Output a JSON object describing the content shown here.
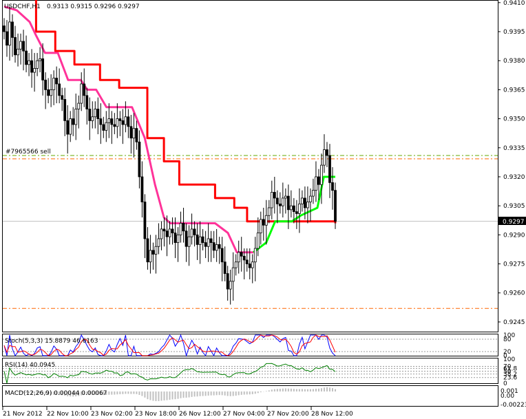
{
  "header": {
    "symbol": "USDCHF,H1",
    "ohlc": "0.9313 0.9315 0.9296 0.9297"
  },
  "order_label": "#7965566 sell",
  "price_badge": "0.9297",
  "colors": {
    "candle": "#000000",
    "red_line": "#ff0000",
    "pink_line": "#ff3399",
    "green_line": "#00ff00",
    "order_line": "#ff6600",
    "level_green": "#66aa00",
    "stoch_main": "#0000ff",
    "stoch_signal": "#ff0000",
    "rsi": "#008000",
    "macd": "#c0c0c0"
  },
  "panels": {
    "stoch": {
      "label": "Stoch(5,3,3) 15.8879 46.6163",
      "ticks": [
        "100",
        "80",
        "20",
        "0"
      ]
    },
    "rsi": {
      "label": "RSI(14) 40.0945",
      "ticks": [
        "100",
        "70",
        "61.8",
        "50",
        "38.2",
        "23.6",
        "0"
      ]
    },
    "macd": {
      "label": "MACD(12,26,9) 0.00044 0.00067",
      "ticks": [
        "0.001",
        "0.00",
        "-0.00223"
      ]
    }
  },
  "chart_data": {
    "type": "candlestick",
    "symbol": "USDCHF",
    "timeframe": "H1",
    "ylim": [
      0.924,
      0.9411
    ],
    "y_ticks": [
      "0.9410",
      "0.9395",
      "0.9380",
      "0.9365",
      "0.9350",
      "0.9335",
      "0.9320",
      "0.9305",
      "0.9290",
      "0.9275",
      "0.9260",
      "0.9245"
    ],
    "x_ticks": [
      "21 Nov 2012",
      "22 Nov 10:00",
      "23 Nov 02:00",
      "23 Nov 18:00",
      "26 Nov 12:00",
      "27 Nov 04:00",
      "27 Nov 20:00",
      "28 Nov 12:00"
    ],
    "last_price": 0.9297,
    "levels": {
      "sell_order": 0.9331,
      "order_line_2": 0.933,
      "lower_line": 0.9252,
      "current_price": 0.9297
    },
    "closes": [
      0.9395,
      0.9388,
      0.94,
      0.9392,
      0.9383,
      0.9386,
      0.939,
      0.9385,
      0.9378,
      0.938,
      0.9374,
      0.9376,
      0.938,
      0.9381,
      0.937,
      0.9365,
      0.9362,
      0.9365,
      0.9371,
      0.9368,
      0.9362,
      0.936,
      0.9349,
      0.9342,
      0.935,
      0.9347,
      0.9355,
      0.9358,
      0.9368,
      0.9362,
      0.9355,
      0.9349,
      0.9351,
      0.9355,
      0.935,
      0.9347,
      0.9344,
      0.9348,
      0.935,
      0.9347,
      0.9346,
      0.935,
      0.9349,
      0.9347,
      0.9351,
      0.9346,
      0.934,
      0.9345,
      0.9338,
      0.932,
      0.9307,
      0.9288,
      0.9276,
      0.9282,
      0.928,
      0.9284,
      0.9288,
      0.9293,
      0.9292,
      0.9289,
      0.9293,
      0.9291,
      0.9286,
      0.929,
      0.9296,
      0.9292,
      0.9284,
      0.9289,
      0.9293,
      0.929,
      0.9285,
      0.9289,
      0.9286,
      0.9284,
      0.9288,
      0.9286,
      0.9282,
      0.9285,
      0.9283,
      0.9276,
      0.927,
      0.9262,
      0.9266,
      0.9273,
      0.9276,
      0.9281,
      0.9279,
      0.9277,
      0.9275,
      0.9273,
      0.9276,
      0.9283,
      0.9291,
      0.9298,
      0.9295,
      0.93,
      0.9304,
      0.9312,
      0.9309,
      0.9306,
      0.9305,
      0.9309,
      0.931,
      0.9303,
      0.9305,
      0.9302,
      0.9301,
      0.9306,
      0.9309,
      0.9304,
      0.9307,
      0.931,
      0.9313,
      0.932,
      0.9316,
      0.9326,
      0.9334,
      0.9331,
      0.9317,
      0.9313,
      0.9297
    ],
    "lines": [
      {
        "color": "red",
        "points": [
          [
            0.0,
            0.9415
          ],
          [
            0.25,
            0.9415
          ],
          [
            0.25,
            0.9395
          ],
          [
            0.4,
            0.9395
          ],
          [
            0.4,
            0.9385
          ],
          [
            0.55,
            0.9385
          ],
          [
            0.55,
            0.9378
          ],
          [
            0.75,
            0.9378
          ],
          [
            0.75,
            0.937
          ],
          [
            0.9,
            0.937
          ],
          [
            0.9,
            0.9366
          ],
          [
            1.12,
            0.9366
          ],
          [
            1.12,
            0.934
          ],
          [
            1.25,
            0.934
          ],
          [
            1.25,
            0.9328
          ],
          [
            1.37,
            0.9328
          ],
          [
            1.37,
            0.9316
          ],
          [
            1.65,
            0.9316
          ],
          [
            1.65,
            0.9309
          ],
          [
            1.8,
            0.9309
          ],
          [
            1.8,
            0.9304
          ],
          [
            1.9,
            0.9304
          ],
          [
            1.9,
            0.9297
          ],
          [
            2.59,
            0.9297
          ],
          [
            2.59,
            0.9296
          ]
        ]
      },
      {
        "color": "pink",
        "points": [
          [
            0.0,
            0.9408
          ],
          [
            0.1,
            0.9406
          ],
          [
            0.2,
            0.94
          ],
          [
            0.25,
            0.9393
          ],
          [
            0.32,
            0.9384
          ],
          [
            0.42,
            0.9384
          ],
          [
            0.5,
            0.937
          ],
          [
            0.6,
            0.937
          ],
          [
            0.65,
            0.9365
          ],
          [
            0.72,
            0.9365
          ],
          [
            0.8,
            0.9356
          ],
          [
            1.0,
            0.9356
          ],
          [
            1.1,
            0.934
          ],
          [
            1.18,
            0.9316
          ],
          [
            1.25,
            0.9299
          ],
          [
            1.3,
            0.9296
          ],
          [
            1.65,
            0.9296
          ],
          [
            1.75,
            0.9291
          ],
          [
            1.82,
            0.9281
          ],
          [
            1.95,
            0.9281
          ]
        ]
      },
      {
        "color": "green",
        "points": [
          [
            1.95,
            0.9281
          ],
          [
            2.05,
            0.9286
          ],
          [
            2.12,
            0.9297
          ],
          [
            2.25,
            0.9297
          ],
          [
            2.32,
            0.93
          ],
          [
            2.45,
            0.9304
          ],
          [
            2.5,
            0.932
          ],
          [
            2.59,
            0.932
          ]
        ]
      }
    ]
  }
}
